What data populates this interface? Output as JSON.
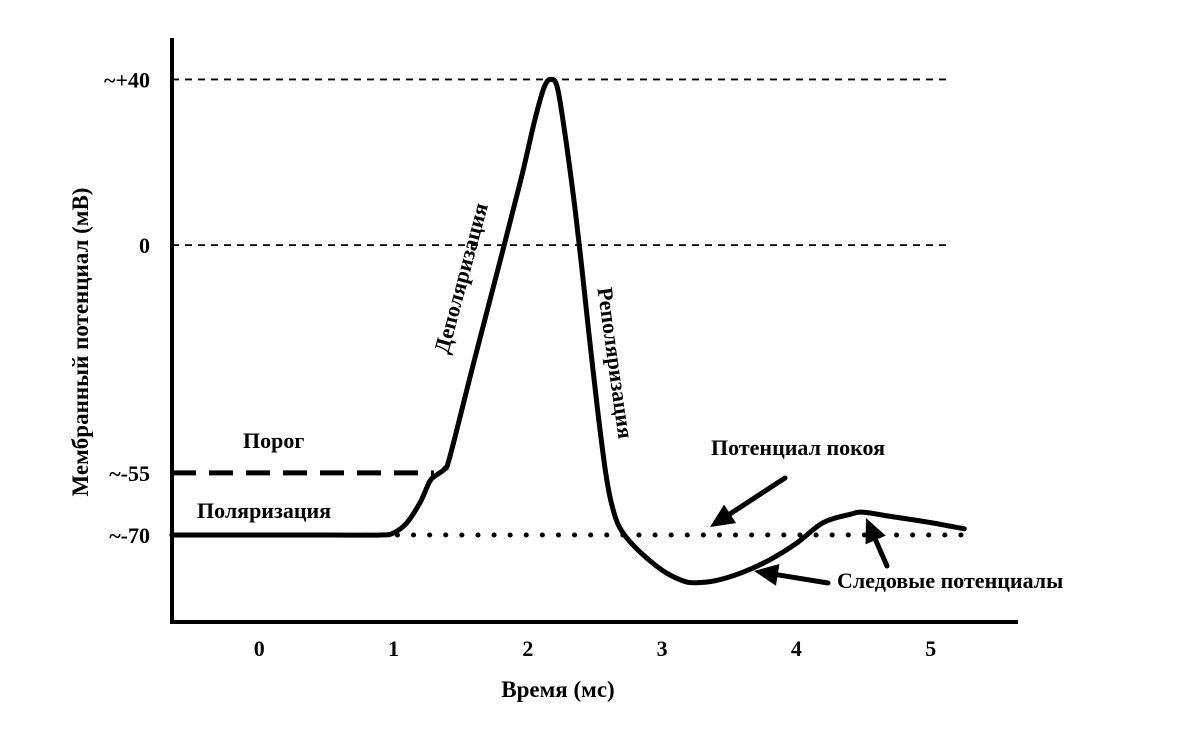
{
  "chart_data": {
    "type": "line",
    "title": "",
    "xlabel": "Время (мс)",
    "ylabel": "Мембранный потенциал (мВ)",
    "xlim": [
      -0.65,
      5.65
    ],
    "ylim": [
      -91,
      50
    ],
    "x_ticks": [
      {
        "value": 0,
        "label": "0"
      },
      {
        "value": 1,
        "label": "1"
      },
      {
        "value": 2,
        "label": "2"
      },
      {
        "value": 3,
        "label": "3"
      },
      {
        "value": 4,
        "label": "4"
      },
      {
        "value": 5,
        "label": "5"
      }
    ],
    "y_ticks": [
      {
        "value": 40,
        "label": "~+40"
      },
      {
        "value": 0,
        "label": "0"
      },
      {
        "value": -55,
        "label": "~-55"
      },
      {
        "value": -70,
        "label": "~-70"
      }
    ],
    "reference_lines": [
      {
        "y": 40,
        "style": "dashed-thin"
      },
      {
        "y": 0,
        "style": "dashed-thin"
      },
      {
        "y": -55,
        "style": "dashed-thick",
        "x_range": [
          -0.65,
          1.3
        ]
      },
      {
        "y": -70,
        "style": "dotted",
        "x_range": [
          -0.65,
          5.25
        ]
      }
    ],
    "series": [
      {
        "name": "",
        "color": "#000000",
        "points": [
          [
            -0.65,
            -70
          ],
          [
            0,
            -70
          ],
          [
            0.5,
            -70
          ],
          [
            0.9,
            -70
          ],
          [
            1.0,
            -69.5
          ],
          [
            1.1,
            -67
          ],
          [
            1.2,
            -62
          ],
          [
            1.27,
            -57
          ],
          [
            1.32,
            -55.5
          ],
          [
            1.38,
            -54
          ],
          [
            1.42,
            -51
          ],
          [
            1.6,
            -28
          ],
          [
            1.8,
            -3
          ],
          [
            1.95,
            16
          ],
          [
            2.05,
            30
          ],
          [
            2.12,
            38
          ],
          [
            2.17,
            40
          ],
          [
            2.22,
            38
          ],
          [
            2.28,
            26
          ],
          [
            2.35,
            9
          ],
          [
            2.4,
            -5
          ],
          [
            2.45,
            -20
          ],
          [
            2.52,
            -40
          ],
          [
            2.58,
            -55
          ],
          [
            2.62,
            -62
          ],
          [
            2.68,
            -68
          ],
          [
            2.8,
            -73
          ],
          [
            3.0,
            -78.5
          ],
          [
            3.15,
            -81
          ],
          [
            3.25,
            -81.5
          ],
          [
            3.4,
            -81
          ],
          [
            3.6,
            -79
          ],
          [
            3.8,
            -76
          ],
          [
            4.0,
            -72
          ],
          [
            4.2,
            -67
          ],
          [
            4.4,
            -65
          ],
          [
            4.5,
            -64.5
          ],
          [
            4.7,
            -65.5
          ],
          [
            5.0,
            -67
          ],
          [
            5.25,
            -68.5
          ]
        ]
      }
    ],
    "annotations": [
      {
        "text": "Порог"
      },
      {
        "text": "Поляризация"
      },
      {
        "text": "Деполяризация"
      },
      {
        "text": "Реполяризация"
      },
      {
        "text": "Потенциал покоя"
      },
      {
        "text": "Следовые потенциалы"
      }
    ],
    "grid": false,
    "legend": "none"
  }
}
